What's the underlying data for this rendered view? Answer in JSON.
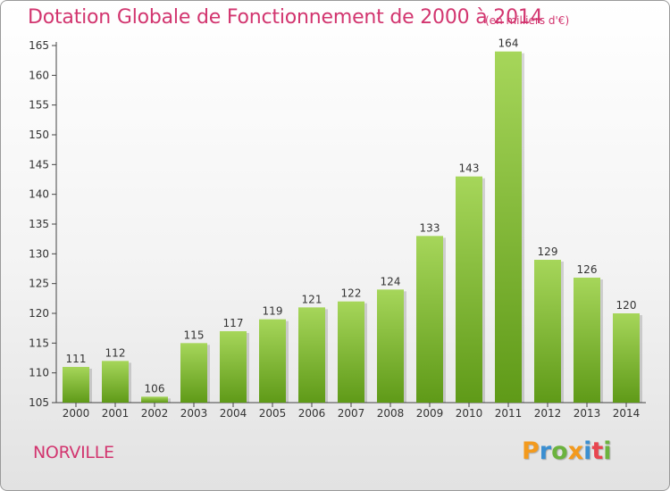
{
  "title": "Dotation Globale de Fonctionnement de 2000 à 2014",
  "subtitle": "(en milliers d'€)",
  "commune": "NORVILLE",
  "logo": {
    "letters": [
      "P",
      "r",
      "o",
      "x",
      "i",
      "t",
      "i"
    ],
    "colors": [
      "#f39a1d",
      "#3b8fd1",
      "#6cb33e",
      "#f39a1d",
      "#3b8fd1",
      "#e8454f",
      "#6cb33e"
    ]
  },
  "colors": {
    "bar_top": "#a6d65a",
    "bar_bottom": "#5f9a18",
    "accent": "#d2356f"
  },
  "chart_data": {
    "type": "bar",
    "categories": [
      "2000",
      "2001",
      "2002",
      "2003",
      "2004",
      "2005",
      "2006",
      "2007",
      "2008",
      "2009",
      "2010",
      "2011",
      "2012",
      "2013",
      "2014"
    ],
    "values": [
      111,
      112,
      106,
      115,
      117,
      119,
      121,
      122,
      124,
      133,
      143,
      164,
      129,
      126,
      120
    ],
    "ylim": [
      105,
      165
    ],
    "yticks": [
      105,
      110,
      115,
      120,
      125,
      130,
      135,
      140,
      145,
      150,
      155,
      160,
      165
    ],
    "grid": false
  }
}
